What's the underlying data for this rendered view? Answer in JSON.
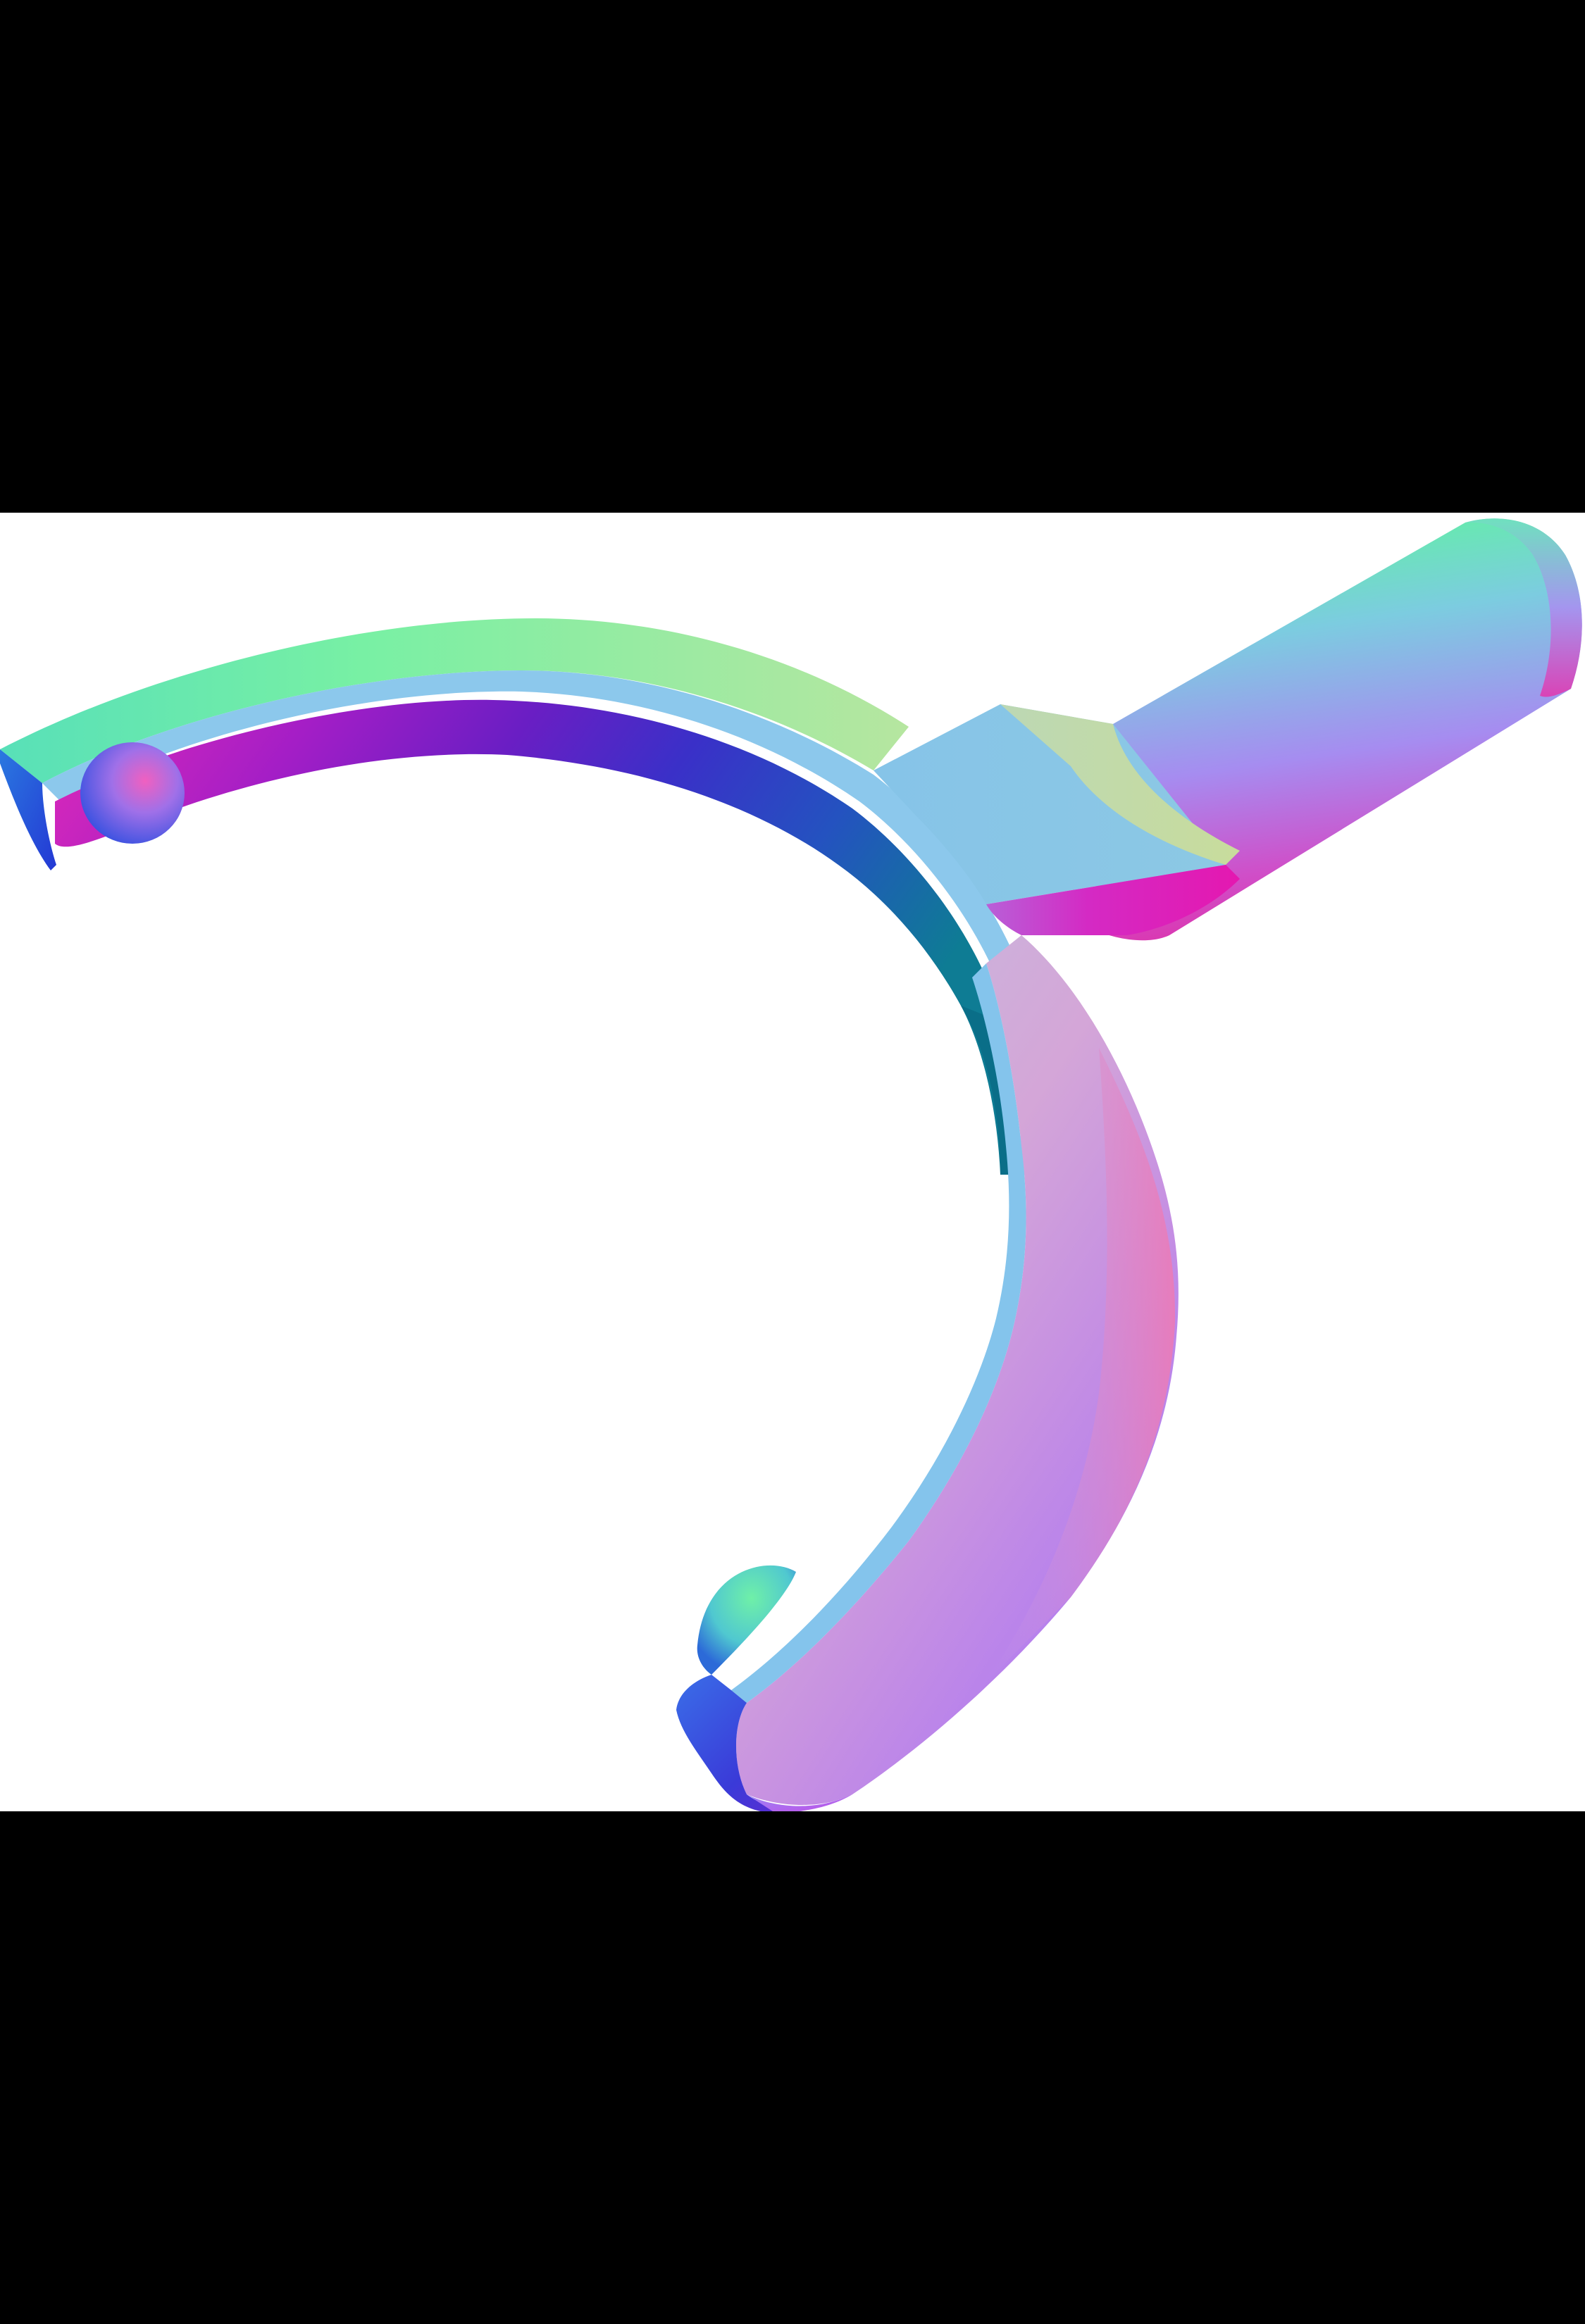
{
  "scene": {
    "subject": "normal-map-render-of-shift-fork",
    "background_color": "#ffffff",
    "letterbox_color": "#000000",
    "palette": {
      "magenta": "#d528c0",
      "violet": "#8a2fd6",
      "indigo": "#4b22c8",
      "blue": "#2a4fd8",
      "teal": "#1e8fa0",
      "sky": "#80c6ea",
      "mint": "#6ff0a8",
      "lilac": "#b98ae8",
      "pink": "#e48ac6"
    }
  }
}
